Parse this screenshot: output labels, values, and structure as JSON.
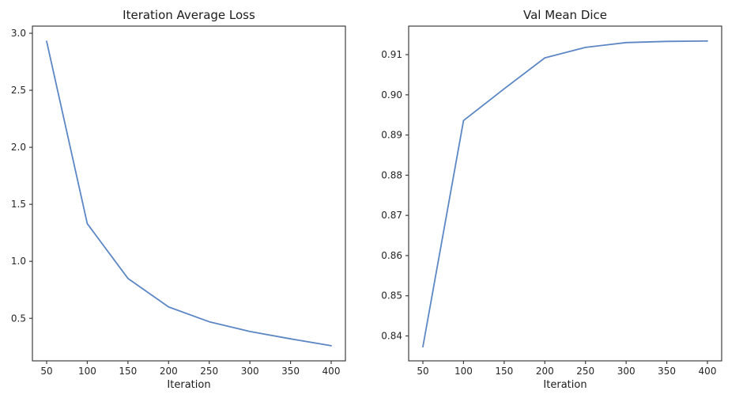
{
  "figure": {
    "background": "#ffffff",
    "spine_color": "#3e3e3e",
    "text_color": "#1c1c1c",
    "tick_color": "#262626"
  },
  "chart_data": [
    {
      "type": "line",
      "title": "Iteration Average Loss",
      "xlabel": "Iteration",
      "ylabel": "",
      "line_color": "#5d87c4",
      "grid": false,
      "legend": null,
      "x": [
        50,
        100,
        150,
        200,
        250,
        300,
        350,
        400
      ],
      "y": [
        2.93,
        1.33,
        0.85,
        0.6,
        0.47,
        0.385,
        0.32,
        0.26
      ],
      "xtick_values": [
        50,
        100,
        150,
        200,
        250,
        300,
        350,
        400
      ],
      "xtick_labels": [
        "50",
        "100",
        "150",
        "200",
        "250",
        "300",
        "350",
        "400"
      ],
      "ytick_values": [
        0.5,
        1.0,
        1.5,
        2.0,
        2.5,
        3.0
      ],
      "ytick_labels": [
        "0.5",
        "1.0",
        "1.5",
        "2.0",
        "2.5",
        "3.0"
      ],
      "xlim": [
        32.5,
        417.5
      ],
      "ylim": [
        0.127,
        3.063
      ]
    },
    {
      "type": "line",
      "title": "Val Mean Dice",
      "xlabel": "Iteration",
      "ylabel": "",
      "line_color": "#5d87c4",
      "grid": false,
      "legend": null,
      "x": [
        50,
        100,
        150,
        200,
        250,
        300,
        350,
        400
      ],
      "y": [
        0.8373,
        0.8936,
        0.9015,
        0.9092,
        0.9118,
        0.913,
        0.9133,
        0.9134
      ],
      "xtick_values": [
        50,
        100,
        150,
        200,
        250,
        300,
        350,
        400
      ],
      "xtick_labels": [
        "50",
        "100",
        "150",
        "200",
        "250",
        "300",
        "350",
        "400"
      ],
      "ytick_values": [
        0.84,
        0.85,
        0.86,
        0.87,
        0.88,
        0.89,
        0.9,
        0.91
      ],
      "ytick_labels": [
        "0.84",
        "0.85",
        "0.86",
        "0.87",
        "0.88",
        "0.89",
        "0.90",
        "0.91"
      ],
      "xlim": [
        32.5,
        417.5
      ],
      "ylim": [
        0.8338,
        0.9171
      ]
    }
  ]
}
